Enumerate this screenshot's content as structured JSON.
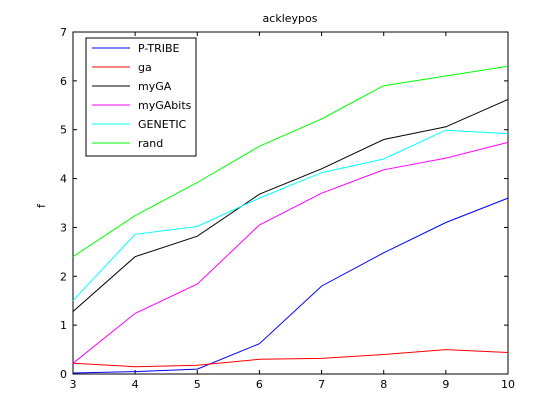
{
  "chart_data": {
    "type": "line",
    "title": "ackleypos",
    "xlabel": "",
    "ylabel": "f",
    "xlim": [
      3,
      10
    ],
    "ylim": [
      0,
      7
    ],
    "x": [
      3,
      4,
      5,
      6,
      7,
      8,
      9,
      10
    ],
    "xticks": [
      "3",
      "4",
      "5",
      "6",
      "7",
      "8",
      "9",
      "10"
    ],
    "yticks": [
      "0",
      "1",
      "2",
      "3",
      "4",
      "5",
      "6",
      "7"
    ],
    "grid": false,
    "legend_position": "top-left",
    "series": [
      {
        "name": "P-TRIBE",
        "color": "#0000ff",
        "values": [
          0.02,
          0.05,
          0.1,
          0.62,
          1.8,
          2.48,
          3.1,
          3.6
        ]
      },
      {
        "name": "ga",
        "color": "#ff0000",
        "values": [
          0.22,
          0.15,
          0.18,
          0.3,
          0.32,
          0.4,
          0.5,
          0.44
        ]
      },
      {
        "name": "myGA",
        "color": "#000000",
        "values": [
          1.28,
          2.4,
          2.82,
          3.68,
          4.2,
          4.8,
          5.06,
          5.62
        ]
      },
      {
        "name": "myGAbits",
        "color": "#ff00ff",
        "values": [
          0.22,
          1.24,
          1.84,
          3.05,
          3.7,
          4.18,
          4.42,
          4.74
        ]
      },
      {
        "name": "GENETIC",
        "color": "#00ffff",
        "values": [
          1.5,
          2.86,
          3.02,
          3.6,
          4.12,
          4.4,
          4.99,
          4.92
        ]
      },
      {
        "name": "rand",
        "color": "#00ff00",
        "values": [
          2.4,
          3.24,
          3.92,
          4.66,
          5.22,
          5.9,
          6.1,
          6.3
        ]
      }
    ]
  }
}
